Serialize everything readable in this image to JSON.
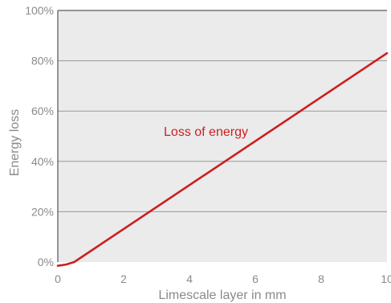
{
  "chart_data": {
    "type": "line",
    "xlabel": "Limescale layer in mm",
    "ylabel": "Energy loss",
    "xlim": [
      0,
      10
    ],
    "ylim": [
      0,
      100
    ],
    "x_ticks": [
      "0",
      "2",
      "4",
      "6",
      "8",
      "10"
    ],
    "x_tick_values": [
      0,
      2,
      4,
      6,
      8,
      10
    ],
    "y_ticks": [
      "0%",
      "20%",
      "40%",
      "60%",
      "80%",
      "100%"
    ],
    "y_tick_values": [
      0,
      20,
      40,
      60,
      80,
      100
    ],
    "grid": "horizontal",
    "series": [
      {
        "x": [
          0,
          0.25,
          0.5,
          10
        ],
        "y": [
          -1.5,
          -1,
          0,
          83
        ],
        "color": "#cc1f1f"
      }
    ],
    "annotations": [
      {
        "text": "Loss of energy",
        "x": 4.5,
        "y": 52,
        "color": "#cc1f1f"
      }
    ]
  },
  "colors": {
    "plot_background": "#ebebeb",
    "grid": "#9a9a9a",
    "axis": "#333333",
    "tick_text": "#8a8a8a"
  }
}
